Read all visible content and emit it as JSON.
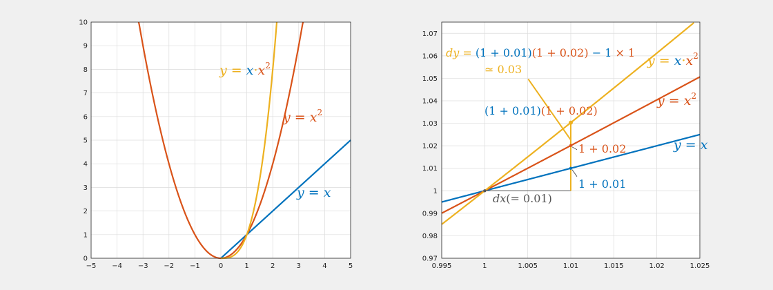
{
  "colors": {
    "blue": "#0072BD",
    "orange": "#D95319",
    "yellow": "#EDB120",
    "background": "#f0f0f0",
    "axes": "#ffffff",
    "grid": "#dcdcdc",
    "gray": "#555555"
  },
  "chart_data": [
    {
      "type": "line",
      "grid": true,
      "xlim": [
        -5,
        5
      ],
      "ylim": [
        0,
        10
      ],
      "x_ticks": [
        "−5",
        "−4",
        "−3",
        "−2",
        "−1",
        "0",
        "1",
        "2",
        "3",
        "4",
        "5"
      ],
      "y_ticks": [
        "0",
        "1",
        "2",
        "3",
        "4",
        "5",
        "6",
        "7",
        "8",
        "9",
        "10"
      ],
      "series": [
        {
          "function": "y = x",
          "color": "#0072BD",
          "x_range": [
            0,
            5
          ],
          "sample": [
            [
              0,
              0
            ],
            [
              1,
              1
            ],
            [
              5,
              5
            ]
          ]
        },
        {
          "function": "y = x^2",
          "color": "#D95319",
          "x_range": [
            -3.17,
            3.17
          ],
          "sample": [
            [
              -3,
              9
            ],
            [
              -2,
              4
            ],
            [
              -1,
              1
            ],
            [
              0,
              0
            ],
            [
              1,
              1
            ],
            [
              2,
              4
            ],
            [
              3,
              9
            ]
          ]
        },
        {
          "function": "y = x·x^2",
          "color": "#EDB120",
          "x_range": [
            0,
            2.16
          ],
          "sample": [
            [
              0,
              0
            ],
            [
              1,
              1
            ],
            [
              2,
              8
            ]
          ]
        }
      ],
      "annotations": {
        "yellow": {
          "y": "y",
          "eq": " = ",
          "x": "x",
          "dot": "·",
          "x2": "x",
          "sup": "2"
        },
        "orange": {
          "y": "y",
          "eq": " = ",
          "x": "x",
          "sup": "2"
        },
        "blue": {
          "y": "y",
          "eq": " = ",
          "x": "x"
        }
      }
    },
    {
      "type": "line",
      "grid": true,
      "xlim": [
        0.995,
        1.025
      ],
      "ylim": [
        0.97,
        1.075
      ],
      "x_ticks": [
        "0.995",
        "1",
        "1.005",
        "1.01",
        "1.015",
        "1.02",
        "1.025"
      ],
      "y_ticks": [
        "0.97",
        "0.98",
        "0.99",
        "1",
        "1.01",
        "1.02",
        "1.03",
        "1.04",
        "1.05",
        "1.06",
        "1.07"
      ],
      "series": [
        {
          "function": "y = x",
          "color": "#0072BD"
        },
        {
          "function": "y = x^2",
          "color": "#D95319"
        },
        {
          "function": "y = x·x^2",
          "color": "#EDB120"
        }
      ],
      "points": {
        "dx": 0.01,
        "y_linear": 1.01,
        "y_square": 1.0201,
        "y_product": 1.030301
      },
      "annotations": {
        "dy_line": {
          "dy": "dy",
          "eq": " = ",
          "part1": "(1 + 0.01)",
          "part2": "(1 + 0.02)",
          "part3": " − 1",
          "part4": " × 1"
        },
        "approx": "≃ 0.03",
        "product_label": {
          "part1": "(1 + 0.01)",
          "part2": "(1 + 0.02)"
        },
        "yellow_label": {
          "y": "y",
          "eq": " = ",
          "x": "x",
          "dot": "·",
          "x2": "x",
          "sup": "2"
        },
        "orange_label": {
          "y": "y",
          "eq": " = ",
          "x": "x",
          "sup": "2"
        },
        "blue_label": {
          "y": "y",
          "eq": " = ",
          "x": "x"
        },
        "square_value": "1 + 0.02",
        "linear_value": "1 + 0.01",
        "dx_label": {
          "dx": "dx",
          "rest": "(= 0.01)"
        }
      }
    }
  ]
}
